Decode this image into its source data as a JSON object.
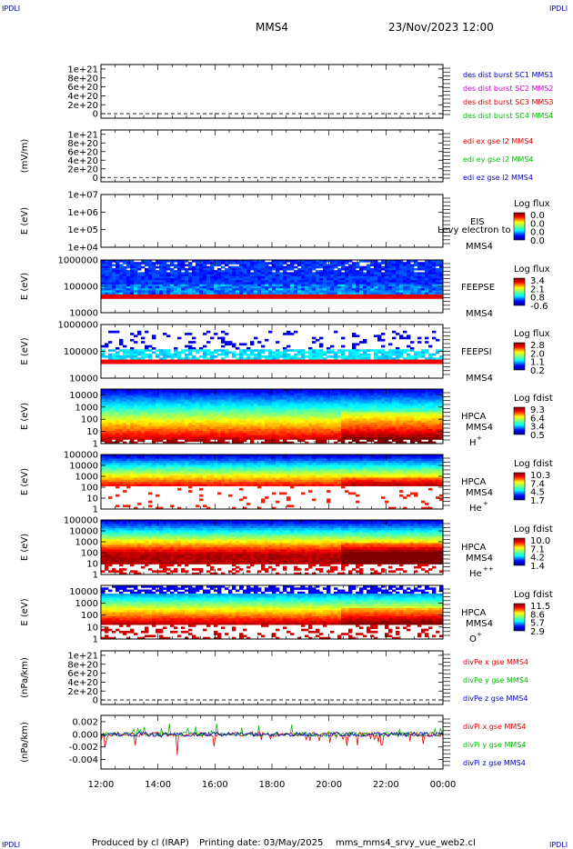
{
  "header": {
    "corner_tl": "IPDLI",
    "corner_tr": "IPDLI",
    "corner_bl": "IPDLI",
    "corner_br": "IPDLI",
    "spacecraft": "MMS4",
    "datetime": "23/Nov/2023 12:00"
  },
  "footer": {
    "produced_by": "Produced by cl (IRAP)",
    "printing_date": "Printing date: 03/May/2025",
    "script_name": "mms_mms4_srvy_vue_web2.cl"
  },
  "colors": {
    "sc1": "#0000cc",
    "sc2": "#cc00cc",
    "sc3": "#dd0000",
    "sc4": "#00bb00",
    "x": "#dd0000",
    "y": "#00bb00",
    "z": "#0000cc"
  },
  "chart_data": [
    {
      "id": "des_dist_burst",
      "type": "line",
      "ylabel": "",
      "ticks": [
        "1e+21",
        "8e+20",
        "6e+20",
        "4e+20",
        "2e+20",
        "0"
      ],
      "tick_values": [
        1e+21,
        8e+20,
        6e+20,
        4e+20,
        2e+20,
        0
      ],
      "ylim": [
        -1e+20,
        1.1e+21
      ],
      "dashed_zero": true,
      "legend": [
        {
          "name": "des dist burst SC1 MMS1",
          "color": "#0000cc"
        },
        {
          "name": "des dist burst SC2 MMS2",
          "color": "#cc00cc"
        },
        {
          "name": "des dist burst SC3 MMS3",
          "color": "#dd0000"
        },
        {
          "name": "des dist burst SC4 MMS4",
          "color": "#00bb00"
        }
      ]
    },
    {
      "id": "edi_e_gse",
      "type": "line",
      "ylabel": "(mV/m)",
      "ticks": [
        "1e+21",
        "8e+20",
        "6e+20",
        "4e+20",
        "2e+20",
        "0"
      ],
      "tick_values": [
        1e+21,
        8e+20,
        6e+20,
        4e+20,
        2e+20,
        0
      ],
      "ylim": [
        -1e+20,
        1.1e+21
      ],
      "dashed_zero": true,
      "legend": [
        {
          "name": "edi ex gse l2 MMS4",
          "color": "#dd0000"
        },
        {
          "name": "edi ey gse l2 MMS4",
          "color": "#00bb00"
        },
        {
          "name": "edi ez gse l2 MMS4",
          "color": "#0000cc"
        }
      ]
    },
    {
      "id": "eis",
      "type": "heatmap",
      "scale": "log",
      "ylabel": "E (eV)",
      "ticks": [
        "1e+07",
        "1e+06",
        "1e+05",
        "1e+04"
      ],
      "tick_values": [
        10000000.0,
        1000000.0,
        100000.0,
        10000.0
      ],
      "ylim": [
        10000.0,
        10000000.0
      ],
      "instrument": "EIS",
      "species": "Levy electron to",
      "spacecraft": "MMS4",
      "colorbar_title": "Log flux",
      "colorbar_ticks": [
        "0.0",
        "0.0",
        "0.0",
        "0.0"
      ]
    },
    {
      "id": "feeps_e",
      "type": "heatmap",
      "scale": "log",
      "ylabel": "E (eV)",
      "ticks": [
        "1000000",
        "100000",
        "10000"
      ],
      "tick_values": [
        1000000.0,
        100000.0,
        10000.0
      ],
      "ylim": [
        10000.0,
        1000000.0
      ],
      "instrument": "FEEPSE",
      "spacecraft": "MMS4",
      "colorbar_title": "Log flux",
      "colorbar_ticks": [
        "3.4",
        "2.1",
        "0.8",
        "-0.6"
      ]
    },
    {
      "id": "feeps_i",
      "type": "heatmap",
      "scale": "log",
      "ylabel": "E (eV)",
      "ticks": [
        "1000000",
        "100000",
        "10000"
      ],
      "tick_values": [
        1000000.0,
        100000.0,
        10000.0
      ],
      "ylim": [
        10000.0,
        1000000.0
      ],
      "instrument": "FEEPSI",
      "spacecraft": "MMS4",
      "colorbar_title": "Log flux",
      "colorbar_ticks": [
        "2.8",
        "2.0",
        "1.1",
        "0.2"
      ]
    },
    {
      "id": "hpca_h",
      "type": "heatmap",
      "scale": "log",
      "ylabel": "E (eV)",
      "ticks": [
        "10000",
        "1000",
        "100",
        "10",
        "1"
      ],
      "tick_values": [
        10000.0,
        1000.0,
        100.0,
        10.0,
        1
      ],
      "ylim": [
        1,
        30000.0
      ],
      "instrument": "HPCA",
      "spacecraft": "MMS4",
      "species_base": "H",
      "species_sup": "+",
      "colorbar_title": "Log fdist",
      "colorbar_ticks": [
        "9.3",
        "6.4",
        "3.4",
        "0.5"
      ]
    },
    {
      "id": "hpca_he1",
      "type": "heatmap",
      "scale": "log",
      "ylabel": "E (eV)",
      "ticks": [
        "100000",
        "10000",
        "1000",
        "100",
        "10",
        "1"
      ],
      "tick_values": [
        100000.0,
        10000.0,
        1000.0,
        100.0,
        10.0,
        1
      ],
      "ylim": [
        1,
        100000.0
      ],
      "instrument": "HPCA",
      "spacecraft": "MMS4",
      "species_base": "He",
      "species_sup": "+",
      "colorbar_title": "Log fdist",
      "colorbar_ticks": [
        "10.3",
        "7.4",
        "4.5",
        "1.7"
      ]
    },
    {
      "id": "hpca_he2",
      "type": "heatmap",
      "scale": "log",
      "ylabel": "E (eV)",
      "ticks": [
        "100000",
        "10000",
        "1000",
        "100",
        "10",
        "1"
      ],
      "tick_values": [
        100000.0,
        10000.0,
        1000.0,
        100.0,
        10.0,
        1
      ],
      "ylim": [
        1,
        100000.0
      ],
      "instrument": "HPCA",
      "spacecraft": "MMS4",
      "species_base": "He",
      "species_sup": "++",
      "colorbar_title": "Log fdist",
      "colorbar_ticks": [
        "10.0",
        "7.1",
        "4.2",
        "1.4"
      ]
    },
    {
      "id": "hpca_o",
      "type": "heatmap",
      "scale": "log",
      "ylabel": "E (eV)",
      "ticks": [
        "10000",
        "1000",
        "100",
        "10",
        "1"
      ],
      "tick_values": [
        10000.0,
        1000.0,
        100.0,
        10.0,
        1
      ],
      "ylim": [
        1,
        30000.0
      ],
      "instrument": "HPCA",
      "spacecraft": "MMS4",
      "species_base": "O",
      "species_sup": "+",
      "colorbar_title": "Log fdist",
      "colorbar_ticks": [
        "11.5",
        "8.6",
        "5.7",
        "2.9"
      ]
    },
    {
      "id": "divpe",
      "type": "line",
      "ylabel": "(nPa/km)",
      "ticks": [
        "1e+21",
        "8e+20",
        "6e+20",
        "4e+20",
        "2e+20",
        "0"
      ],
      "tick_values": [
        1e+21,
        8e+20,
        6e+20,
        4e+20,
        2e+20,
        0
      ],
      "ylim": [
        -1e+20,
        1.1e+21
      ],
      "dashed_zero": true,
      "legend": [
        {
          "name": "divPe x gse MMS4",
          "color": "#dd0000"
        },
        {
          "name": "divPe y gse MMS4",
          "color": "#00bb00"
        },
        {
          "name": "divPe z gse MMS4",
          "color": "#0000cc"
        }
      ]
    },
    {
      "id": "divpi",
      "type": "line",
      "ylabel": "(nPa/km)",
      "ticks": [
        "0.002",
        "0.000",
        "-0.002",
        "-0.004"
      ],
      "tick_values": [
        0.002,
        0.0,
        -0.002,
        -0.004
      ],
      "ylim": [
        -0.0055,
        0.003
      ],
      "legend": [
        {
          "name": "divPi x gse MMS4",
          "color": "#dd0000"
        },
        {
          "name": "divPi y gse MMS4",
          "color": "#00bb00"
        },
        {
          "name": "divPi z gse MMS4",
          "color": "#0000cc"
        }
      ]
    }
  ],
  "x_axis": {
    "labels": [
      "12:00",
      "14:00",
      "16:00",
      "18:00",
      "20:00",
      "22:00",
      "00:00"
    ],
    "hours": [
      12,
      14,
      16,
      18,
      20,
      22,
      24
    ],
    "xlim": [
      12,
      24
    ]
  }
}
